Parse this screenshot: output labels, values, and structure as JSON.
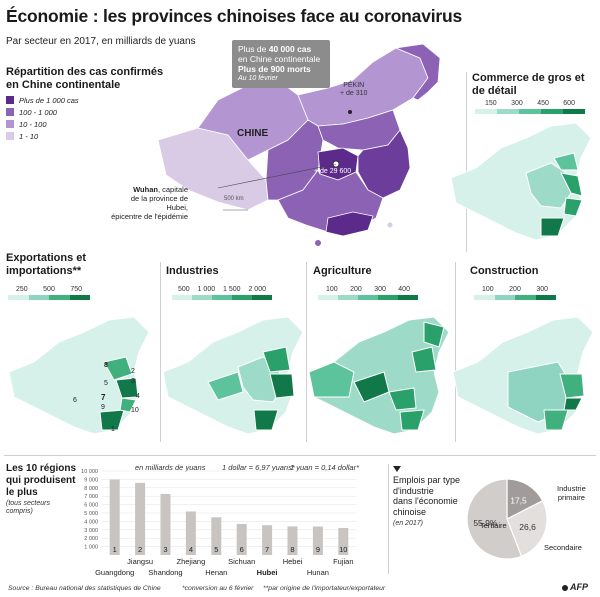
{
  "title": "Économie : les provinces chinoises face au coronavirus",
  "subtitle": "Par secteur en 2017, en milliards de yuans",
  "callout": {
    "line1_pre": "Plus de ",
    "line1_bold": "40 000 cas",
    "line2": "en Chine continentale",
    "line3_bold": "Plus de 900 morts",
    "line4": "Au 10 février"
  },
  "main_map": {
    "heading": "Répartition des cas confirmés en Chine continentale",
    "country_label": "CHINE",
    "beijing_label": "PÉKIN",
    "beijing_cases": "+ de 310",
    "wuhan_cases": "+ de 29 600",
    "wuhan_bold": "Wuhan",
    "wuhan_rest": ", capitale",
    "wuhan_line2": "de la province de Hubei,",
    "wuhan_line3": "épicentre de l'épidémie",
    "scale": "500 km",
    "legend": [
      {
        "label": "Plus de 1 000 cas",
        "color": "#5b2a8a"
      },
      {
        "label": "100 - 1 000",
        "color": "#8c62b5"
      },
      {
        "label": "10 - 100",
        "color": "#b396d1"
      },
      {
        "label": "1 - 10",
        "color": "#d9cbe6"
      }
    ]
  },
  "maps": [
    {
      "heading": "Commerce de gros et de détail",
      "scale": [
        "150",
        "300",
        "450",
        "600"
      ],
      "colors": [
        "#d6f1ea",
        "#9ddbc8",
        "#5cc39c",
        "#2aa16a",
        "#11784a"
      ]
    },
    {
      "heading": "Exportations et importations**",
      "scale": [
        "250",
        "500",
        "750"
      ],
      "colors": [
        "#d6f1ea",
        "#8fd4c0",
        "#3fb07e",
        "#11784a"
      ]
    },
    {
      "heading": "Industries",
      "scale": [
        "500",
        "1 000",
        "1 500",
        "2 000"
      ],
      "colors": [
        "#d6f1ea",
        "#9ddbc8",
        "#5cc39c",
        "#2aa16a",
        "#11784a"
      ]
    },
    {
      "heading": "Agriculture",
      "scale": [
        "100",
        "200",
        "300",
        "400"
      ],
      "colors": [
        "#d6f1ea",
        "#9ddbc8",
        "#5cc39c",
        "#2aa16a",
        "#11784a"
      ]
    },
    {
      "heading": "Construction",
      "scale": [
        "100",
        "200",
        "300"
      ],
      "colors": [
        "#d6f1ea",
        "#8fd4c0",
        "#3fb07e",
        "#11784a"
      ]
    }
  ],
  "export_map_numbers": [
    "1",
    "2",
    "3",
    "4",
    "5",
    "6",
    "7",
    "8",
    "9",
    "10"
  ],
  "bar_section": {
    "heading_line1": "Les 10 régions",
    "heading_line2": "qui produisent",
    "heading_line3": "le plus",
    "heading_note": "(tous secteurs compris)",
    "unit": "en milliards de yuans",
    "rate1": "1 dollar = 6,97 yuans*",
    "rate2": "1 yuan = 0,14 dollar*"
  },
  "chart_data": {
    "type": "bar",
    "categories": [
      "Guangdong",
      "Jiangsu",
      "Shandong",
      "Zhejiang",
      "Henan",
      "Sichuan",
      "Hubei",
      "Hebei",
      "Hunan",
      "Fujian"
    ],
    "ranks": [
      "1",
      "2",
      "3",
      "4",
      "5",
      "6",
      "7",
      "8",
      "9",
      "10"
    ],
    "values": [
      8980,
      8590,
      7270,
      5180,
      4490,
      3700,
      3550,
      3400,
      3390,
      3220
    ],
    "yticks": [
      "10 000",
      "9 000",
      "8 000",
      "7 000",
      "6 000",
      "5 000",
      "4 000",
      "3 000",
      "2 000",
      "1 000"
    ],
    "ylim": [
      0,
      10000
    ],
    "bar_color": "#c8c4c2",
    "highlight": "Hubei"
  },
  "pie": {
    "heading_line1": "Emplois par type",
    "heading_line2": "d'industrie",
    "heading_line3": "dans l'économie",
    "heading_line4": "chinoise",
    "note": "(en 2017)",
    "chart_data": {
      "type": "pie",
      "slices": [
        {
          "label_line1": "Industrie",
          "label_line2": "primaire",
          "value": 17.5,
          "value_text": "17,5",
          "color": "#a19c99"
        },
        {
          "label_line1": "Secondaire",
          "label_line2": "",
          "value": 26.6,
          "value_text": "26,6",
          "color": "#e2dfdd"
        },
        {
          "label_line1": "Tertiaire",
          "label_line2": "",
          "value": 55.9,
          "value_text": "55,9%",
          "color": "#d1cdcb"
        }
      ]
    }
  },
  "footer": {
    "source": "Source : Bureau national des statistiques de Chine",
    "note1": "*conversion au 6 février",
    "note2": "**par origine de l'importateur/exportateur",
    "logo": "AFP"
  }
}
